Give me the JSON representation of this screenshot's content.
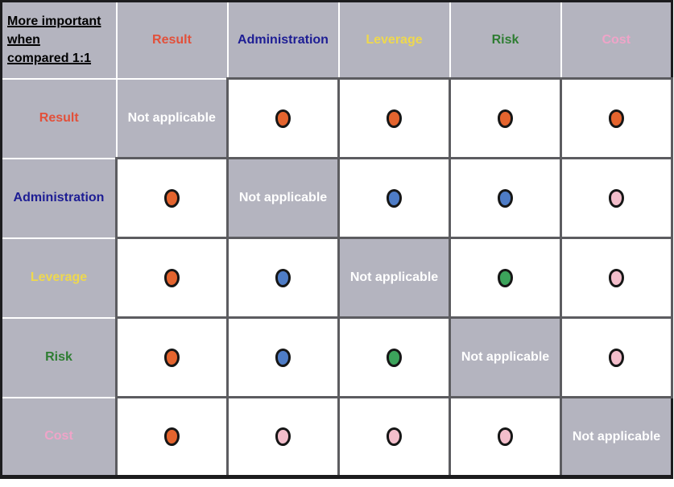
{
  "matrix": {
    "corner_title": "More important\nwhen\ncompared 1:1",
    "not_applicable_label": "Not applicable",
    "criteria": [
      {
        "key": "result",
        "label": "Result",
        "text_color": "#e2503a",
        "dot_color": "#e4642e"
      },
      {
        "key": "administration",
        "label": "Administration",
        "text_color": "#1d1d94",
        "dot_color": "#4e7cc6"
      },
      {
        "key": "leverage",
        "label": "Leverage",
        "text_color": "#eed84e"
      },
      {
        "key": "risk",
        "label": "Risk",
        "text_color": "#2e7d32",
        "dot_color": "#3ca35b"
      },
      {
        "key": "cost",
        "label": "Cost",
        "text_color": "#efa4c8",
        "dot_color": "#f3becb"
      }
    ],
    "rows": [
      {
        "row": "result",
        "cells": [
          "na",
          "result",
          "result",
          "result",
          "result"
        ]
      },
      {
        "row": "administration",
        "cells": [
          "result",
          "na",
          "administration",
          "administration",
          "cost"
        ]
      },
      {
        "row": "leverage",
        "cells": [
          "result",
          "administration",
          "na",
          "risk",
          "cost"
        ]
      },
      {
        "row": "risk",
        "cells": [
          "result",
          "administration",
          "risk",
          "na",
          "cost"
        ]
      },
      {
        "row": "cost",
        "cells": [
          "result",
          "cost",
          "cost",
          "cost",
          "na"
        ]
      }
    ]
  },
  "colors": {
    "cell_background_gray": "#b4b4bf",
    "not_applicable_text": "#ffffff",
    "dot_outline": "#161616",
    "grid_line_dark": "#5c5c60",
    "grid_line_light": "#ffffff",
    "outer_border": "#1c1c1e"
  }
}
